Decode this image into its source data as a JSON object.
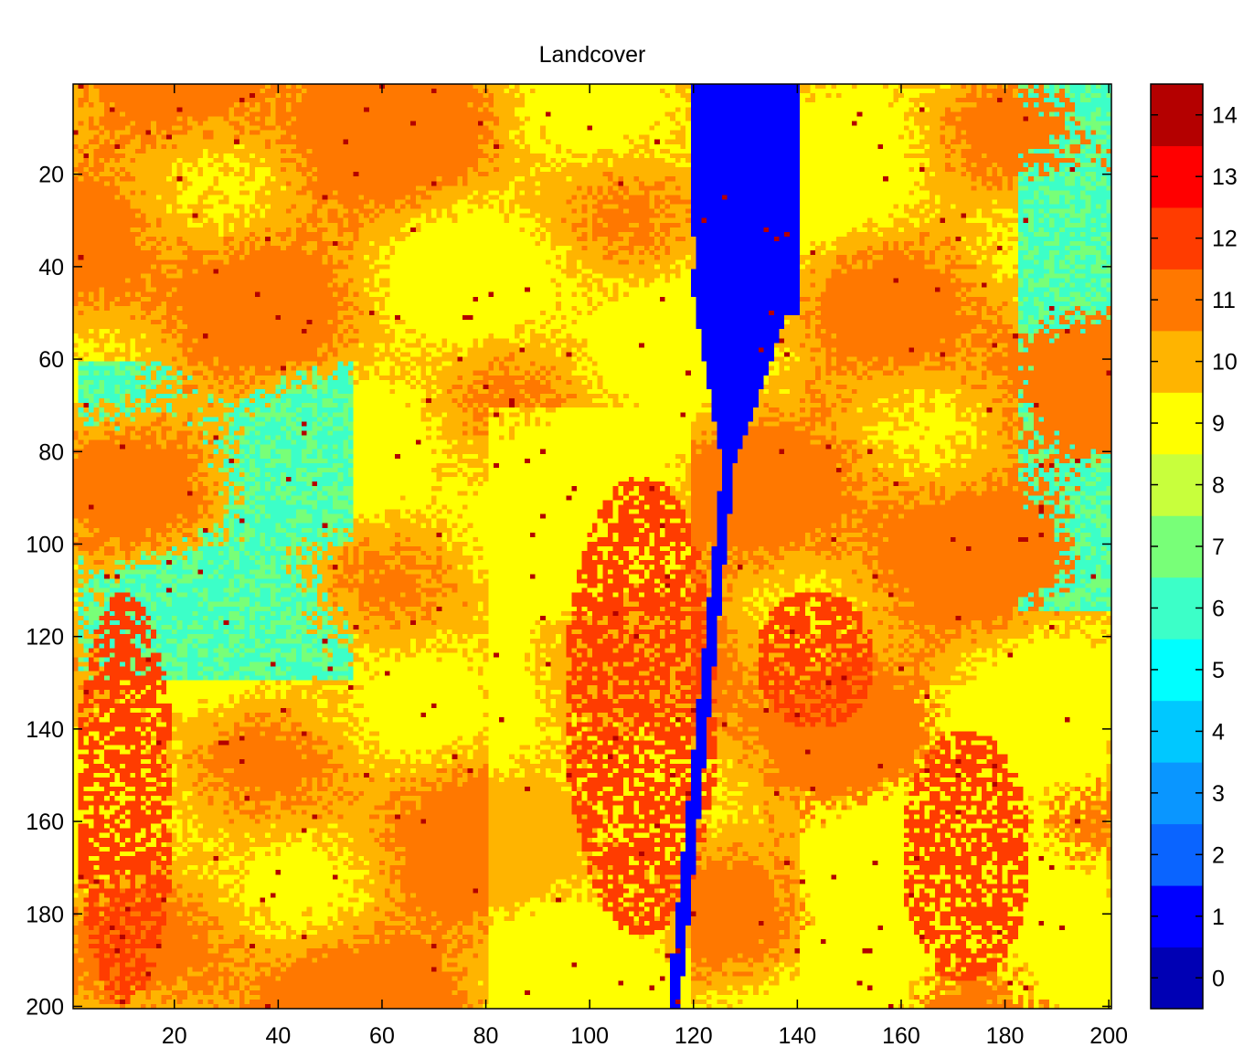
{
  "chart_data": {
    "type": "heatmap",
    "title": "Landcover",
    "xlabel": "",
    "ylabel": "",
    "x_range": [
      1,
      200
    ],
    "y_range": [
      1,
      200
    ],
    "y_reversed": true,
    "grid": false,
    "x_ticks": [
      20,
      40,
      60,
      80,
      100,
      120,
      140,
      160,
      180,
      200
    ],
    "y_ticks": [
      20,
      40,
      60,
      80,
      100,
      120,
      140,
      160,
      180,
      200
    ],
    "colorbar": {
      "position": "right",
      "min": -0.5,
      "max": 14.5,
      "ticks": [
        0,
        1,
        2,
        3,
        4,
        5,
        6,
        7,
        8,
        9,
        10,
        11,
        12,
        13,
        14
      ],
      "colors": [
        "#0000b4",
        "#0000ff",
        "#0a64ff",
        "#0a96ff",
        "#00c8ff",
        "#00ffff",
        "#3cffc8",
        "#78ff78",
        "#c8ff3c",
        "#ffff00",
        "#ffb400",
        "#ff7800",
        "#ff3c00",
        "#ff0000",
        "#b40000"
      ]
    },
    "regions": [
      {
        "label": "water body (upper)",
        "class": 1,
        "x_range": [
          119,
          141
        ],
        "y_range": [
          1,
          78
        ]
      },
      {
        "label": "river channel",
        "class": 1,
        "x_range": [
          113,
          130
        ],
        "y_range": [
          78,
          200
        ]
      },
      {
        "label": "urban cluster west",
        "class": 12,
        "x_range": [
          1,
          20
        ],
        "y_range": [
          110,
          200
        ]
      },
      {
        "label": "urban cluster center",
        "class": 12,
        "x_range": [
          95,
          125
        ],
        "y_range": [
          85,
          185
        ]
      },
      {
        "label": "urban cluster east",
        "class": 12,
        "x_range": [
          132,
          155
        ],
        "y_range": [
          110,
          140
        ]
      },
      {
        "label": "urban cluster southeast",
        "class": 12,
        "x_range": [
          160,
          185
        ],
        "y_range": [
          140,
          195
        ]
      },
      {
        "label": "vegetation strip east",
        "class": 6,
        "x_range": [
          180,
          200
        ],
        "y_range": [
          1,
          110
        ]
      },
      {
        "label": "vegetation patch west",
        "class": 6,
        "x_range": [
          1,
          60
        ],
        "y_range": [
          55,
          140
        ]
      }
    ]
  }
}
